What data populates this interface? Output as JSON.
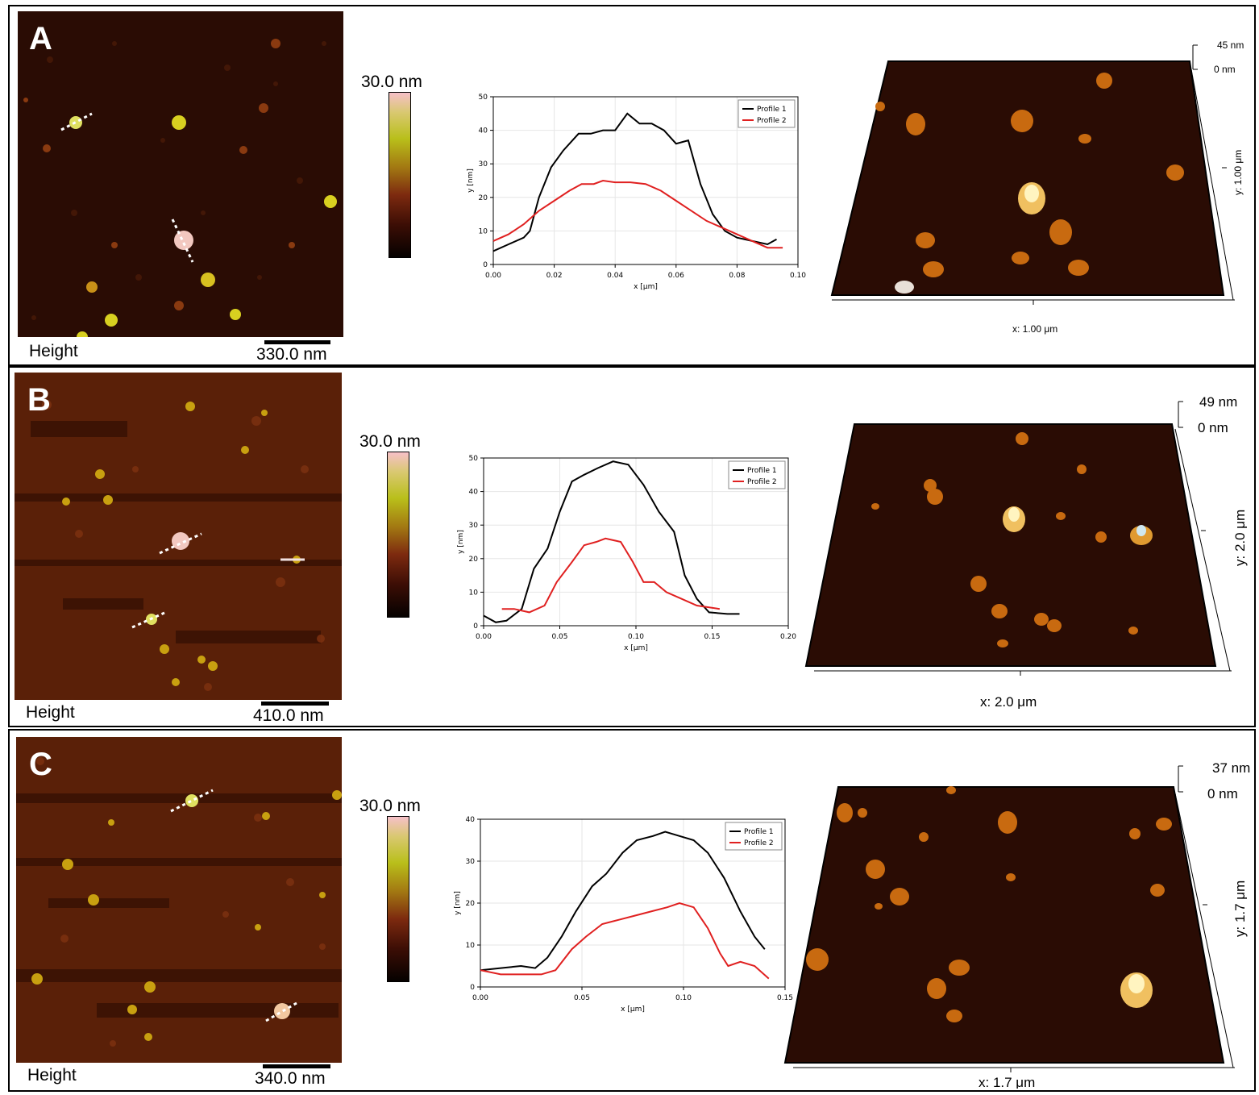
{
  "panels": [
    {
      "letter": "A",
      "height_label": "Height",
      "scalebar_label": "330.0 nm",
      "colorbar_label": "30.0 nm",
      "surface": {
        "z_max": "45 nm",
        "z_min": "0 nm",
        "x_label": "x: 1.00 μm",
        "y_label": "y: 1.00 μm"
      },
      "chart_data": {
        "type": "line",
        "xlabel": "x [μm]",
        "ylabel": "y [nm]",
        "xlim": [
          0,
          0.1
        ],
        "ylim": [
          0,
          50
        ],
        "x_ticks": [
          "0.00",
          "0.02",
          "0.04",
          "0.06",
          "0.08",
          "0.10"
        ],
        "y_ticks": [
          "0",
          "10",
          "20",
          "30",
          "40",
          "50"
        ],
        "legend_position": "top-right",
        "series": [
          {
            "name": "Profile 1",
            "color": "#000000",
            "points": [
              [
                0.0,
                4
              ],
              [
                0.005,
                6
              ],
              [
                0.01,
                8
              ],
              [
                0.012,
                10
              ],
              [
                0.015,
                20
              ],
              [
                0.019,
                29
              ],
              [
                0.023,
                34
              ],
              [
                0.028,
                39
              ],
              [
                0.032,
                39
              ],
              [
                0.036,
                40
              ],
              [
                0.04,
                40
              ],
              [
                0.044,
                45
              ],
              [
                0.048,
                42
              ],
              [
                0.052,
                42
              ],
              [
                0.056,
                40
              ],
              [
                0.06,
                36
              ],
              [
                0.064,
                37
              ],
              [
                0.068,
                24
              ],
              [
                0.072,
                15
              ],
              [
                0.076,
                10
              ],
              [
                0.08,
                8
              ],
              [
                0.085,
                7
              ],
              [
                0.09,
                6
              ],
              [
                0.093,
                7.5
              ]
            ]
          },
          {
            "name": "Profile 2",
            "color": "#e02020",
            "points": [
              [
                0.0,
                7
              ],
              [
                0.005,
                9
              ],
              [
                0.01,
                12
              ],
              [
                0.015,
                16
              ],
              [
                0.02,
                19
              ],
              [
                0.025,
                22
              ],
              [
                0.029,
                24
              ],
              [
                0.033,
                24
              ],
              [
                0.036,
                25
              ],
              [
                0.04,
                24.5
              ],
              [
                0.045,
                24.5
              ],
              [
                0.05,
                24
              ],
              [
                0.055,
                22
              ],
              [
                0.06,
                19
              ],
              [
                0.065,
                16
              ],
              [
                0.07,
                13
              ],
              [
                0.075,
                11
              ],
              [
                0.08,
                9
              ],
              [
                0.085,
                7
              ],
              [
                0.09,
                5
              ],
              [
                0.095,
                5
              ]
            ]
          }
        ]
      }
    },
    {
      "letter": "B",
      "height_label": "Height",
      "scalebar_label": "410.0 nm",
      "colorbar_label": "30.0 nm",
      "surface": {
        "z_max": "49 nm",
        "z_min": "0 nm",
        "x_label": "x: 2.0 μm",
        "y_label": "y: 2.0 μm"
      },
      "chart_data": {
        "type": "line",
        "xlabel": "x [μm]",
        "ylabel": "y [nm]",
        "xlim": [
          0,
          0.2
        ],
        "ylim": [
          0,
          50
        ],
        "x_ticks": [
          "0.00",
          "0.05",
          "0.10",
          "0.15",
          "0.20"
        ],
        "y_ticks": [
          "0",
          "10",
          "20",
          "30",
          "40",
          "50"
        ],
        "legend_position": "top-right",
        "series": [
          {
            "name": "Profile 1",
            "color": "#000000",
            "points": [
              [
                0.0,
                3
              ],
              [
                0.008,
                1
              ],
              [
                0.015,
                1.5
              ],
              [
                0.025,
                5
              ],
              [
                0.033,
                17
              ],
              [
                0.042,
                23
              ],
              [
                0.05,
                34
              ],
              [
                0.058,
                43
              ],
              [
                0.066,
                45
              ],
              [
                0.075,
                47
              ],
              [
                0.085,
                49
              ],
              [
                0.095,
                48
              ],
              [
                0.105,
                42
              ],
              [
                0.115,
                34
              ],
              [
                0.125,
                28
              ],
              [
                0.132,
                15
              ],
              [
                0.14,
                8
              ],
              [
                0.148,
                4
              ],
              [
                0.16,
                3.5
              ],
              [
                0.168,
                3.5
              ]
            ]
          },
          {
            "name": "Profile 2",
            "color": "#e02020",
            "points": [
              [
                0.012,
                5
              ],
              [
                0.02,
                5
              ],
              [
                0.03,
                4
              ],
              [
                0.04,
                6
              ],
              [
                0.048,
                13
              ],
              [
                0.058,
                19
              ],
              [
                0.066,
                24
              ],
              [
                0.074,
                25
              ],
              [
                0.08,
                26
              ],
              [
                0.09,
                25
              ],
              [
                0.098,
                19
              ],
              [
                0.105,
                13
              ],
              [
                0.112,
                13
              ],
              [
                0.12,
                10
              ],
              [
                0.13,
                8
              ],
              [
                0.14,
                6
              ],
              [
                0.155,
                5
              ]
            ]
          }
        ]
      }
    },
    {
      "letter": "C",
      "height_label": "Height",
      "scalebar_label": "340.0 nm",
      "colorbar_label": "30.0 nm",
      "surface": {
        "z_max": "37 nm",
        "z_min": "0 nm",
        "x_label": "x: 1.7 μm",
        "y_label": "y: 1.7 μm"
      },
      "chart_data": {
        "type": "line",
        "xlabel": "x [μm]",
        "ylabel": "y [nm]",
        "xlim": [
          0,
          0.15
        ],
        "ylim": [
          0,
          40
        ],
        "x_ticks": [
          "0.00",
          "0.05",
          "0.10",
          "0.15"
        ],
        "y_ticks": [
          "0",
          "10",
          "20",
          "30",
          "40"
        ],
        "legend_position": "top-right",
        "series": [
          {
            "name": "Profile 1",
            "color": "#000000",
            "points": [
              [
                0.0,
                4
              ],
              [
                0.01,
                4.5
              ],
              [
                0.02,
                5
              ],
              [
                0.027,
                4.5
              ],
              [
                0.033,
                7
              ],
              [
                0.04,
                12
              ],
              [
                0.047,
                18
              ],
              [
                0.055,
                24
              ],
              [
                0.062,
                27
              ],
              [
                0.07,
                32
              ],
              [
                0.077,
                35
              ],
              [
                0.085,
                36
              ],
              [
                0.091,
                37
              ],
              [
                0.098,
                36
              ],
              [
                0.105,
                35
              ],
              [
                0.112,
                32
              ],
              [
                0.12,
                26
              ],
              [
                0.128,
                18
              ],
              [
                0.135,
                12
              ],
              [
                0.14,
                9
              ]
            ]
          },
          {
            "name": "Profile 2",
            "color": "#e02020",
            "points": [
              [
                0.0,
                4
              ],
              [
                0.01,
                3
              ],
              [
                0.02,
                3
              ],
              [
                0.03,
                3
              ],
              [
                0.037,
                4
              ],
              [
                0.045,
                9
              ],
              [
                0.052,
                12
              ],
              [
                0.06,
                15
              ],
              [
                0.068,
                16
              ],
              [
                0.076,
                17
              ],
              [
                0.084,
                18
              ],
              [
                0.092,
                19
              ],
              [
                0.098,
                20
              ],
              [
                0.105,
                19
              ],
              [
                0.112,
                14
              ],
              [
                0.118,
                8
              ],
              [
                0.122,
                5
              ],
              [
                0.128,
                6
              ],
              [
                0.135,
                5
              ],
              [
                0.142,
                2
              ]
            ]
          }
        ]
      }
    }
  ],
  "colors": {
    "afm_background": "#2a0d05",
    "profile1": "#000000",
    "profile2": "#e02020"
  }
}
